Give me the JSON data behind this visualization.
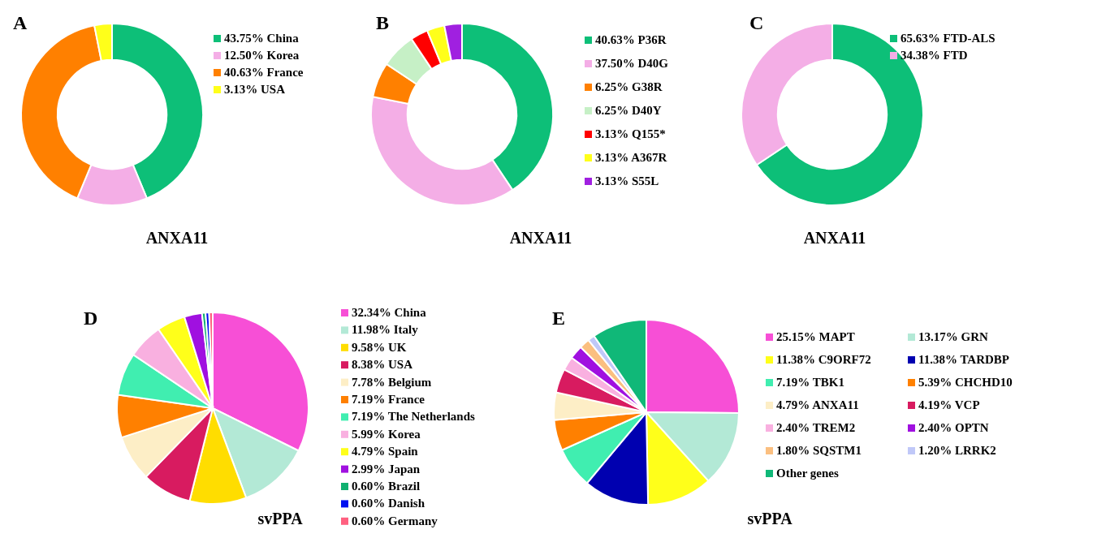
{
  "chart_data": [
    {
      "type": "donut",
      "title": "ANXA11",
      "annotations": [
        "A"
      ],
      "legend": "right",
      "categories": [
        "China",
        "Korea",
        "France",
        "USA"
      ],
      "values": [
        43.75,
        12.5,
        40.63,
        3.13
      ],
      "value_labels": [
        "43.75%",
        "12.50%",
        "40.63%",
        "3.13%"
      ],
      "colors": [
        "#0dbf78",
        "#f4aee6",
        "#ff8000",
        "#ffff1a"
      ]
    },
    {
      "type": "donut",
      "title": "ANXA11",
      "annotations": [
        "B"
      ],
      "legend": "right",
      "categories": [
        "P36R",
        "D40G",
        "G38R",
        "D40Y",
        "Q155*",
        "A367R",
        "S55L"
      ],
      "values": [
        40.63,
        37.5,
        6.25,
        6.25,
        3.13,
        3.13,
        3.13
      ],
      "value_labels": [
        "40.63%",
        "37.50%",
        "6.25%",
        "6.25%",
        "3.13%",
        "3.13%",
        "3.13%"
      ],
      "colors": [
        "#0dbf78",
        "#f4aee6",
        "#ff8000",
        "#c6f0c6",
        "#ff0000",
        "#ffff1a",
        "#a020e0"
      ]
    },
    {
      "type": "donut",
      "title": "ANXA11",
      "annotations": [
        "C"
      ],
      "legend": "right",
      "categories": [
        "FTD-ALS",
        "FTD"
      ],
      "values": [
        65.63,
        34.38
      ],
      "value_labels": [
        "65.63%",
        "34.38%"
      ],
      "colors": [
        "#0dbf78",
        "#f4aee6"
      ]
    },
    {
      "type": "pie",
      "title": "svPPA",
      "annotations": [
        "D"
      ],
      "legend": "right",
      "categories": [
        "China",
        "Italy",
        "UK",
        "USA",
        "Belgium",
        "France",
        "The Netherlands",
        "Korea",
        "Spain",
        "Japan",
        "Brazil",
        "Danish",
        "Germany"
      ],
      "values": [
        32.34,
        11.98,
        9.58,
        8.38,
        7.78,
        7.19,
        7.19,
        5.99,
        4.79,
        2.99,
        0.6,
        0.6,
        0.6
      ],
      "value_labels": [
        "32.34%",
        "11.98%",
        "9.58%",
        "8.38%",
        "7.78%",
        "7.19%",
        "7.19%",
        "5.99%",
        "4.79%",
        "2.99%",
        "0.60%",
        "0.60%",
        "0.60%"
      ],
      "colors": [
        "#f74fd6",
        "#b3e9d6",
        "#ffdd00",
        "#d81b60",
        "#fdeec6",
        "#ff8000",
        "#40eeb0",
        "#f9b0e0",
        "#ffff1a",
        "#a010e0",
        "#10b070",
        "#0010f0",
        "#ff6080"
      ]
    },
    {
      "type": "pie",
      "title": "svPPA",
      "annotations": [
        "E"
      ],
      "legend": "right",
      "categories": [
        "MAPT",
        "GRN",
        "C9ORF72",
        "TARDBP",
        "TBK1",
        "CHCHD10",
        "ANXA11",
        "VCP",
        "TREM2",
        "OPTN",
        "SQSTM1",
        "LRRK2",
        "Other genes"
      ],
      "values": [
        25.15,
        13.17,
        11.38,
        11.38,
        7.19,
        5.39,
        4.79,
        4.19,
        2.4,
        2.4,
        1.8,
        1.2,
        9.56
      ],
      "value_labels": [
        "25.15%",
        "13.17%",
        "11.38%",
        "11.38%",
        "7.19%",
        "5.39%",
        "4.79%",
        "4.19%",
        "2.40%",
        "2.40%",
        "1.80%",
        "1.20%",
        null
      ],
      "colors": [
        "#f74fd6",
        "#b3e9d6",
        "#ffff1a",
        "#0000b0",
        "#40eeb0",
        "#ff8000",
        "#fdeec6",
        "#d81b60",
        "#f9b0e0",
        "#a010e0",
        "#fbbf80",
        "#c0c8f8",
        "#10b878"
      ]
    }
  ]
}
